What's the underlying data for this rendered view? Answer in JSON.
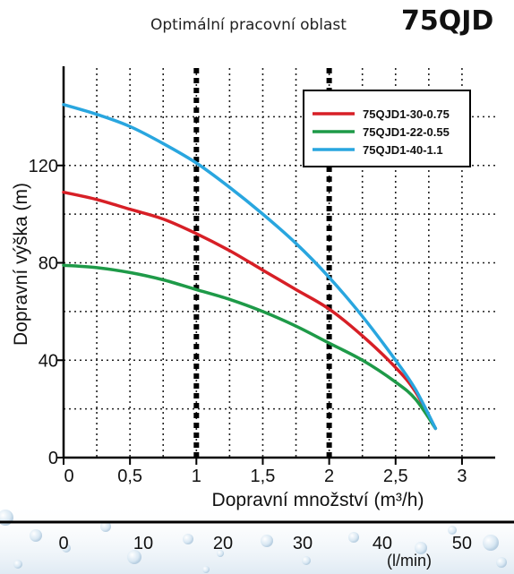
{
  "header": {
    "subtitle": "Optimální pracovní oblast",
    "model": "75QJD"
  },
  "chart_data": {
    "type": "line",
    "title": "Optimální pracovní oblast",
    "xlabel": "Dopravní množství (m³/h)",
    "ylabel": "Dopravní výška (m)",
    "x_ticks": [
      "0",
      "0,5",
      "1",
      "1,5",
      "2",
      "2,5",
      "3"
    ],
    "y_ticks": [
      "0",
      "40",
      "80",
      "120"
    ],
    "xlim": [
      0,
      3.25
    ],
    "ylim": [
      0,
      160
    ],
    "secondary_axis": {
      "ticks": [
        "0",
        "10",
        "20",
        "30",
        "40",
        "50"
      ],
      "unit": "(l/min)"
    },
    "optimal_range": [
      1,
      2
    ],
    "grid": true,
    "legend_position": "top-right",
    "series": [
      {
        "name": "75QJD1-30-0.75",
        "color": "#d71f26",
        "x": [
          0,
          0.25,
          0.5,
          0.75,
          1.0,
          1.25,
          1.5,
          1.75,
          2.0,
          2.25,
          2.5,
          2.65,
          2.8
        ],
        "y": [
          109,
          106,
          102,
          98,
          92,
          85,
          77,
          69,
          61,
          50,
          37,
          27,
          12
        ]
      },
      {
        "name": "75QJD1-22-0.55",
        "color": "#1e9a48",
        "x": [
          0,
          0.25,
          0.5,
          0.75,
          1.0,
          1.25,
          1.5,
          1.75,
          2.0,
          2.25,
          2.5,
          2.65,
          2.8
        ],
        "y": [
          79,
          78,
          76,
          73,
          69,
          65,
          60,
          54,
          47,
          40,
          31,
          24,
          12
        ]
      },
      {
        "name": "75QJD1-40-1.1",
        "color": "#29a6df",
        "x": [
          0,
          0.25,
          0.5,
          0.75,
          1.0,
          1.25,
          1.5,
          1.75,
          2.0,
          2.25,
          2.5,
          2.65,
          2.8
        ],
        "y": [
          145,
          141,
          136,
          129,
          121,
          111,
          100,
          88,
          74,
          58,
          40,
          28,
          12
        ]
      }
    ]
  }
}
